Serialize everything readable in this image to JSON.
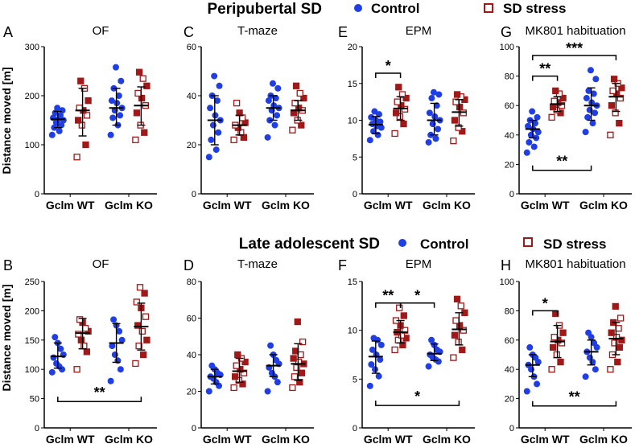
{
  "figure": {
    "colors": {
      "control": "#1f3ee6",
      "sd": "#a01818",
      "axis": "#000000"
    },
    "rows": [
      {
        "title": "Peripubertal SD",
        "legend": [
          {
            "label": "Control",
            "marker": "filled-circle"
          },
          {
            "label": "SD stress",
            "marker": "open-square"
          }
        ]
      },
      {
        "title": "Late adolescent SD",
        "legend": [
          {
            "label": "Control",
            "marker": "filled-circle"
          },
          {
            "label": "SD stress",
            "marker": "open-square"
          }
        ]
      }
    ],
    "ylabel": "Distance moved [m]"
  },
  "chart_data": [
    {
      "type": "scatter",
      "id": "A",
      "letter": "A",
      "title": "OF",
      "categories": [
        "Gclm WT",
        "Gclm KO"
      ],
      "ylim": [
        0,
        300
      ],
      "yticks": [
        "0",
        "100",
        "200",
        "300"
      ],
      "series": [
        {
          "name": "Control",
          "group": "Gclm WT",
          "values": [
            120,
            128,
            135,
            140,
            145,
            150,
            152,
            155,
            160,
            165,
            170,
            175
          ],
          "mean": 152,
          "sd_low": 135,
          "sd_high": 168
        },
        {
          "name": "SD stress",
          "group": "Gclm WT",
          "values": [
            75,
            100,
            140,
            150,
            160,
            170,
            175,
            190,
            215,
            230
          ],
          "mean": 170,
          "sd_low": 118,
          "sd_high": 215
        },
        {
          "name": "Control",
          "group": "Gclm KO",
          "values": [
            120,
            140,
            155,
            160,
            170,
            175,
            185,
            190,
            200,
            215,
            230,
            258
          ],
          "mean": 175,
          "sd_low": 140,
          "sd_high": 215
        },
        {
          "name": "SD stress",
          "group": "Gclm KO",
          "values": [
            110,
            125,
            140,
            165,
            180,
            195,
            205,
            220,
            235,
            248
          ],
          "mean": 180,
          "sd_low": 140,
          "sd_high": 218
        }
      ],
      "significance": []
    },
    {
      "type": "scatter",
      "id": "C",
      "letter": "C",
      "title": "T-maze",
      "categories": [
        "Gclm WT",
        "Gclm KO"
      ],
      "ylim": [
        0,
        60
      ],
      "yticks": [
        "0",
        "20",
        "40",
        "60"
      ],
      "series": [
        {
          "name": "Control",
          "group": "Gclm WT",
          "values": [
            15,
            18,
            22,
            25,
            28,
            30,
            32,
            35,
            38,
            40,
            44,
            48
          ],
          "mean": 30,
          "sd_low": 20,
          "sd_high": 40
        },
        {
          "name": "SD stress",
          "group": "Gclm WT",
          "values": [
            22,
            23,
            25,
            27,
            28,
            29,
            31,
            33,
            37
          ],
          "mean": 28,
          "sd_low": 24,
          "sd_high": 32
        },
        {
          "name": "Control",
          "group": "Gclm KO",
          "values": [
            23,
            28,
            30,
            32,
            34,
            35,
            36,
            38,
            39,
            40,
            43,
            45
          ],
          "mean": 35,
          "sd_low": 30,
          "sd_high": 40
        },
        {
          "name": "SD stress",
          "group": "Gclm KO",
          "values": [
            26,
            28,
            30,
            33,
            34,
            35,
            37,
            39,
            41,
            44
          ],
          "mean": 34,
          "sd_low": 30,
          "sd_high": 38
        }
      ],
      "significance": []
    },
    {
      "type": "scatter",
      "id": "E",
      "letter": "E",
      "title": "EPM",
      "categories": [
        "Gclm WT",
        "Gclm KO"
      ],
      "ylim": [
        0,
        20
      ],
      "yticks": [
        "0",
        "5",
        "10",
        "15",
        "20"
      ],
      "series": [
        {
          "name": "Control",
          "group": "Gclm WT",
          "values": [
            7.3,
            8,
            8.5,
            9,
            9.2,
            9.5,
            9.8,
            10,
            10.4,
            10.8,
            11.2
          ],
          "mean": 9.4,
          "sd_low": 8.2,
          "sd_high": 10.5
        },
        {
          "name": "SD stress",
          "group": "Gclm WT",
          "values": [
            8.2,
            9.5,
            10.5,
            11,
            11.5,
            12,
            12.5,
            13,
            13.5,
            14.5
          ],
          "mean": 11.6,
          "sd_low": 10,
          "sd_high": 13.2
        },
        {
          "name": "Control",
          "group": "Gclm KO",
          "values": [
            7,
            7.5,
            8,
            8.8,
            9.5,
            10,
            10.5,
            11,
            12,
            13,
            13.5,
            13.8
          ],
          "mean": 10,
          "sd_low": 8,
          "sd_high": 12.3
        },
        {
          "name": "SD stress",
          "group": "Gclm KO",
          "values": [
            7.2,
            8.5,
            9,
            10,
            11,
            11.8,
            12.5,
            12.8,
            13.2,
            13.5
          ],
          "mean": 11.1,
          "sd_low": 9.2,
          "sd_high": 12.8
        }
      ],
      "significance": [
        {
          "label": "*",
          "from": 0,
          "to": 1,
          "level": 16.4,
          "style": "bracket"
        }
      ]
    },
    {
      "type": "scatter",
      "id": "G",
      "letter": "G",
      "title": "MK801 habituation",
      "categories": [
        "Gclm WT",
        "Gclm KO"
      ],
      "ylim": [
        0,
        100
      ],
      "yticks": [
        "0",
        "20",
        "40",
        "60",
        "80",
        "100"
      ],
      "series": [
        {
          "name": "Control",
          "group": "Gclm WT",
          "values": [
            28,
            32,
            35,
            38,
            40,
            42,
            44,
            46,
            48,
            50,
            52,
            56
          ],
          "mean": 44,
          "sd_low": 38,
          "sd_high": 50
        },
        {
          "name": "SD stress",
          "group": "Gclm WT",
          "values": [
            52,
            55,
            57,
            59,
            60,
            62,
            63,
            65,
            68,
            70
          ],
          "mean": 61,
          "sd_low": 56,
          "sd_high": 66
        },
        {
          "name": "Control",
          "group": "Gclm KO",
          "values": [
            42,
            48,
            52,
            55,
            57,
            60,
            62,
            65,
            68,
            70,
            78,
            84
          ],
          "mean": 60,
          "sd_low": 50,
          "sd_high": 72
        },
        {
          "name": "SD stress",
          "group": "Gclm KO",
          "values": [
            40,
            48,
            55,
            60,
            65,
            68,
            70,
            72,
            75,
            78
          ],
          "mean": 66,
          "sd_low": 56,
          "sd_high": 75
        }
      ],
      "significance": [
        {
          "label": "**",
          "from": 0,
          "to": 1,
          "level": 80,
          "style": "bracket"
        },
        {
          "label": "***",
          "from": 0,
          "to": 3,
          "level": 94,
          "style": "bracket"
        },
        {
          "label": "**",
          "from": 0,
          "to": 2,
          "level": 16,
          "style": "underline"
        }
      ]
    },
    {
      "type": "scatter",
      "id": "B",
      "letter": "B",
      "title": "OF",
      "categories": [
        "Gclm WT",
        "Gclm KO"
      ],
      "ylim": [
        0,
        250
      ],
      "yticks": [
        "0",
        "50",
        "100",
        "150",
        "200",
        "250"
      ],
      "series": [
        {
          "name": "Control",
          "group": "Gclm WT",
          "values": [
            95,
            100,
            105,
            110,
            120,
            125,
            135,
            145,
            155
          ],
          "mean": 122,
          "sd_low": 102,
          "sd_high": 145
        },
        {
          "name": "SD stress",
          "group": "Gclm WT",
          "values": [
            100,
            130,
            140,
            150,
            160,
            165,
            170,
            180,
            185
          ],
          "mean": 162,
          "sd_low": 135,
          "sd_high": 187
        },
        {
          "name": "Control",
          "group": "Gclm KO",
          "values": [
            80,
            100,
            115,
            125,
            140,
            150,
            165,
            175,
            185
          ],
          "mean": 145,
          "sd_low": 112,
          "sd_high": 178
        },
        {
          "name": "SD stress",
          "group": "Gclm KO",
          "values": [
            110,
            125,
            140,
            150,
            165,
            175,
            190,
            205,
            215,
            230,
            240
          ],
          "mean": 173,
          "sd_low": 133,
          "sd_high": 213
        }
      ],
      "significance": [
        {
          "label": "**",
          "from": 0,
          "to": 3,
          "level": 45,
          "style": "underline"
        }
      ]
    },
    {
      "type": "scatter",
      "id": "D",
      "letter": "D",
      "title": "T-maze",
      "categories": [
        "Gclm WT",
        "Gclm KO"
      ],
      "ylim": [
        0,
        80
      ],
      "yticks": [
        "0",
        "20",
        "40",
        "60",
        "80"
      ],
      "series": [
        {
          "name": "Control",
          "group": "Gclm WT",
          "values": [
            20,
            23,
            25,
            27,
            28,
            29,
            30,
            32,
            34
          ],
          "mean": 28,
          "sd_low": 24,
          "sd_high": 32
        },
        {
          "name": "SD stress",
          "group": "Gclm WT",
          "values": [
            22,
            24,
            26,
            28,
            30,
            32,
            34,
            36,
            38,
            40
          ],
          "mean": 31,
          "sd_low": 25,
          "sd_high": 38
        },
        {
          "name": "Control",
          "group": "Gclm KO",
          "values": [
            20,
            25,
            28,
            30,
            33,
            35,
            37,
            40,
            45
          ],
          "mean": 34,
          "sd_low": 28,
          "sd_high": 40
        },
        {
          "name": "SD stress",
          "group": "Gclm KO",
          "values": [
            22,
            25,
            28,
            30,
            33,
            35,
            36,
            38,
            40,
            42,
            47,
            58
          ],
          "mean": 35,
          "sd_low": 26,
          "sd_high": 46
        }
      ],
      "significance": []
    },
    {
      "type": "scatter",
      "id": "F",
      "letter": "F",
      "title": "EPM",
      "categories": [
        "Gclm WT",
        "Gclm KO"
      ],
      "ylim": [
        0,
        15
      ],
      "yticks": [
        "0",
        "5",
        "10",
        "15"
      ],
      "series": [
        {
          "name": "Control",
          "group": "Gclm WT",
          "values": [
            4.3,
            5.3,
            6,
            6.5,
            7,
            7.5,
            8,
            8.5,
            9,
            9.2
          ],
          "mean": 7.3,
          "sd_low": 5.6,
          "sd_high": 8.9
        },
        {
          "name": "SD stress",
          "group": "Gclm WT",
          "values": [
            8,
            8.5,
            9,
            9.2,
            9.5,
            9.8,
            10,
            10.5,
            11,
            11.5,
            12.3
          ],
          "mean": 9.8,
          "sd_low": 8.7,
          "sd_high": 11
        },
        {
          "name": "Control",
          "group": "Gclm KO",
          "values": [
            6.3,
            6.8,
            7,
            7.2,
            7.5,
            7.8,
            8,
            8.5,
            9
          ],
          "mean": 7.6,
          "sd_low": 6.9,
          "sd_high": 8.6
        },
        {
          "name": "SD stress",
          "group": "Gclm KO",
          "values": [
            7.2,
            8,
            8.8,
            9.5,
            10,
            10.5,
            11,
            11.8,
            12.5,
            13.2
          ],
          "mean": 10.1,
          "sd_low": 8.5,
          "sd_high": 11.8
        }
      ],
      "significance": [
        {
          "label": "**",
          "from": 0,
          "to": 1,
          "level": 12.8,
          "style": "bracket"
        },
        {
          "label": "*",
          "from": 1,
          "to": 2,
          "level": 12.8,
          "style": "bracket"
        },
        {
          "label": "*",
          "from": 0,
          "to": 3,
          "level": 2.3,
          "style": "underline"
        }
      ]
    },
    {
      "type": "scatter",
      "id": "H",
      "letter": "H",
      "title": "MK801 habituation",
      "categories": [
        "Gclm WT",
        "Gclm KO"
      ],
      "ylim": [
        0,
        100
      ],
      "yticks": [
        "0",
        "20",
        "40",
        "60",
        "80",
        "100"
      ],
      "series": [
        {
          "name": "Control",
          "group": "Gclm WT",
          "values": [
            25,
            30,
            35,
            40,
            43,
            45,
            48,
            50,
            55
          ],
          "mean": 43,
          "sd_low": 35,
          "sd_high": 50
        },
        {
          "name": "SD stress",
          "group": "Gclm WT",
          "values": [
            40,
            45,
            50,
            55,
            58,
            60,
            62,
            65,
            70,
            78
          ],
          "mean": 59,
          "sd_low": 48,
          "sd_high": 70
        },
        {
          "name": "Control",
          "group": "Gclm KO",
          "values": [
            35,
            40,
            45,
            48,
            52,
            55,
            58,
            62,
            65
          ],
          "mean": 52,
          "sd_low": 43,
          "sd_high": 60
        },
        {
          "name": "SD stress",
          "group": "Gclm KO",
          "values": [
            40,
            45,
            50,
            55,
            58,
            60,
            62,
            65,
            68,
            72,
            75,
            83
          ],
          "mean": 61,
          "sd_low": 50,
          "sd_high": 72
        }
      ],
      "significance": [
        {
          "label": "*",
          "from": 0,
          "to": 1,
          "level": 80,
          "style": "bracket"
        },
        {
          "label": "**",
          "from": 0,
          "to": 3,
          "level": 15,
          "style": "underline"
        }
      ]
    }
  ]
}
